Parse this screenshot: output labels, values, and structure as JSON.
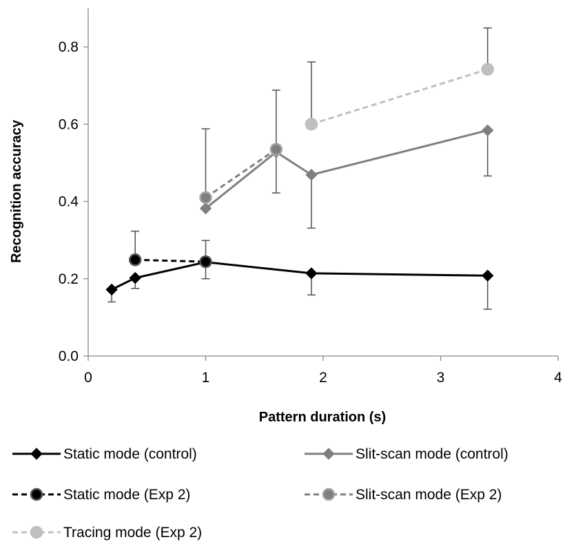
{
  "chart_data": {
    "type": "line",
    "xlabel": "Pattern duration (s)",
    "ylabel": "Recognition accuracy",
    "xlim": [
      0,
      4
    ],
    "ylim": [
      0,
      0.9
    ],
    "x_ticks": [
      "0",
      "1",
      "2",
      "3",
      "4"
    ],
    "y_ticks": [
      "0.0",
      "0.2",
      "0.4",
      "0.6",
      "0.8"
    ],
    "grid": false,
    "legend_position": "bottom",
    "series": [
      {
        "name": "Static mode (control)",
        "color": "#000000",
        "dash": "solid",
        "marker": "diamond",
        "x": [
          0.2,
          0.4,
          1.0,
          1.9,
          3.4
        ],
        "y": [
          0.172,
          0.202,
          0.243,
          0.214,
          0.208
        ],
        "err_low": [
          0.032,
          0.027,
          0.043,
          0.056,
          0.087
        ],
        "err_high": [
          0.0,
          0.0,
          0.0,
          0.0,
          0.0
        ]
      },
      {
        "name": "Static mode (Exp 2)",
        "color": "#000000",
        "dash": "dashed",
        "marker": "circle",
        "x": [
          0.4,
          1.0
        ],
        "y": [
          0.249,
          0.244
        ],
        "err_low": [
          0.0,
          0.0
        ],
        "err_high": [
          0.074,
          0.055
        ]
      },
      {
        "name": "Slit-scan mode (control)",
        "color": "#7f7f7f",
        "dash": "solid",
        "marker": "diamond",
        "x": [
          1.0,
          1.6,
          1.9,
          3.4
        ],
        "y": [
          0.382,
          0.528,
          0.469,
          0.584
        ],
        "err_low": [
          0.0,
          0.106,
          0.138,
          0.118
        ],
        "err_high": [
          0.0,
          0.0,
          0.0,
          0.0
        ]
      },
      {
        "name": "Slit-scan mode (Exp 2)",
        "color": "#7f7f7f",
        "dash": "dashed",
        "marker": "circle",
        "x": [
          1.0,
          1.6
        ],
        "y": [
          0.41,
          0.535
        ],
        "err_low": [
          0.0,
          0.0
        ],
        "err_high": [
          0.178,
          0.153
        ]
      },
      {
        "name": "Tracing mode (Exp 2)",
        "color": "#bfbfbf",
        "dash": "dashed",
        "marker": "circle",
        "x": [
          1.9,
          3.4
        ],
        "y": [
          0.6,
          0.742
        ],
        "err_low": [
          0.0,
          0.0
        ],
        "err_high": [
          0.161,
          0.107
        ]
      }
    ]
  }
}
